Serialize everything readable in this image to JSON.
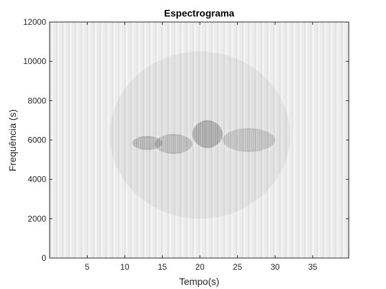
{
  "chart_data": {
    "type": "heatmap",
    "title": "Espectrograma",
    "xlabel": "Tempo(s)",
    "ylabel": "Frequência (s)",
    "xlim": [
      0,
      39.8
    ],
    "ylim": [
      0,
      12000
    ],
    "x_ticks": [
      5,
      10,
      15,
      20,
      25,
      30,
      35
    ],
    "y_ticks": [
      0,
      2000,
      4000,
      6000,
      8000,
      10000,
      12000
    ],
    "colormap": "gray",
    "grid": false,
    "background_color": "#efefef",
    "energy_regions": [
      {
        "t_start": 11,
        "t_end": 15,
        "f_low": 5500,
        "f_high": 6200,
        "intensity": 0.22
      },
      {
        "t_start": 14,
        "t_end": 19,
        "f_low": 5300,
        "f_high": 6300,
        "intensity": 0.2
      },
      {
        "t_start": 19,
        "t_end": 23,
        "f_low": 5600,
        "f_high": 7000,
        "intensity": 0.28
      },
      {
        "t_start": 23,
        "t_end": 30,
        "f_low": 5400,
        "f_high": 6600,
        "intensity": 0.17
      },
      {
        "t_start": 8,
        "t_end": 32,
        "f_low": 2000,
        "f_high": 10500,
        "intensity": 0.05
      }
    ]
  }
}
